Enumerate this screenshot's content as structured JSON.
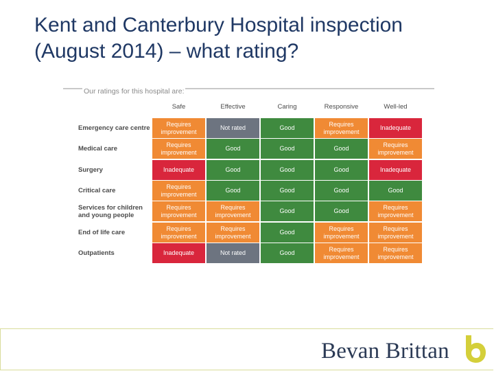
{
  "slide": {
    "title_line1": "Kent and Canterbury Hospital inspection",
    "title_line2": "(August 2014) – what rating?"
  },
  "ratings": {
    "subtitle": "Our ratings for this hospital are:",
    "columns": [
      "Safe",
      "Effective",
      "Caring",
      "Responsive",
      "Well-led"
    ],
    "rows": [
      {
        "label": "Emergency care centre",
        "values": [
          "Requires improvement",
          "Not rated",
          "Good",
          "Requires improvement",
          "Inadequate"
        ]
      },
      {
        "label": "Medical care",
        "values": [
          "Requires improvement",
          "Good",
          "Good",
          "Good",
          "Requires improvement"
        ]
      },
      {
        "label": "Surgery",
        "values": [
          "Inadequate",
          "Good",
          "Good",
          "Good",
          "Inadequate"
        ]
      },
      {
        "label": "Critical care",
        "values": [
          "Requires improvement",
          "Good",
          "Good",
          "Good",
          "Good"
        ]
      },
      {
        "label": "Services for children and young people",
        "values": [
          "Requires improvement",
          "Requires improvement",
          "Good",
          "Good",
          "Requires improvement"
        ]
      },
      {
        "label": "End of life care",
        "values": [
          "Requires improvement",
          "Requires improvement",
          "Good",
          "Requires improvement",
          "Requires improvement"
        ]
      },
      {
        "label": "Outpatients",
        "values": [
          "Inadequate",
          "Not rated",
          "Good",
          "Requires improvement",
          "Requires improvement"
        ]
      }
    ],
    "colors": {
      "Good": "#3f8a3f",
      "Requires improvement": "#f08a34",
      "Inadequate": "#d9263c",
      "Not rated": "#6d7480"
    }
  },
  "footer": {
    "brand": "Bevan Brittan",
    "logo_color": "#d4cf3a",
    "logo_accent": "#2b3a55"
  }
}
